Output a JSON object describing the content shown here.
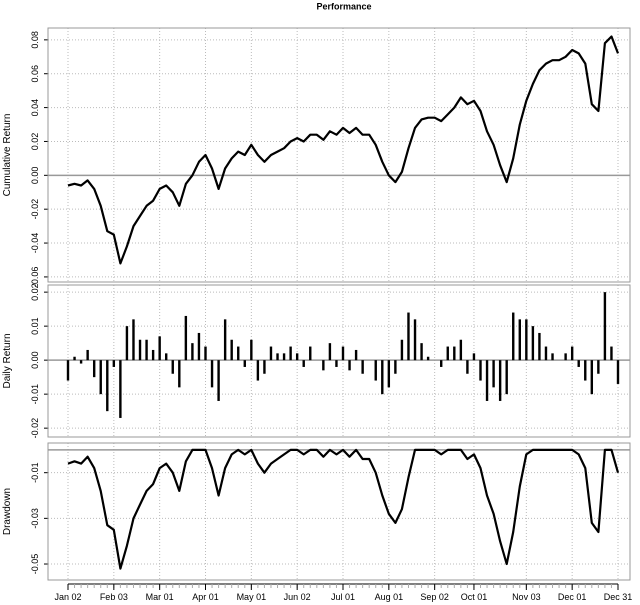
{
  "chart_data": [
    {
      "type": "line",
      "title": "Performance",
      "ylabel": "Cumulative Return",
      "color": "#000000",
      "grid": true,
      "ylim": [
        -0.063,
        0.087
      ],
      "yticks": [
        -0.06,
        -0.04,
        -0.02,
        {
          "value": 0,
          "label": "0.00"
        },
        0.02,
        0.04,
        0.06,
        0.08
      ],
      "values": [
        -0.006,
        -0.005,
        -0.006,
        -0.003,
        -0.008,
        -0.018,
        -0.033,
        -0.035,
        -0.052,
        -0.042,
        -0.03,
        -0.024,
        -0.018,
        -0.015,
        -0.008,
        -0.006,
        -0.01,
        -0.018,
        -0.005,
        0.0,
        0.008,
        0.012,
        0.004,
        -0.008,
        0.004,
        0.01,
        0.014,
        0.012,
        0.018,
        0.012,
        0.008,
        0.012,
        0.014,
        0.016,
        0.02,
        0.022,
        0.02,
        0.024,
        0.024,
        0.021,
        0.026,
        0.024,
        0.028,
        0.025,
        0.028,
        0.024,
        0.024,
        0.018,
        0.008,
        0.0,
        -0.004,
        0.002,
        0.016,
        0.028,
        0.033,
        0.034,
        0.034,
        0.032,
        0.036,
        0.04,
        0.046,
        0.042,
        0.044,
        0.038,
        0.026,
        0.018,
        0.006,
        -0.004,
        0.01,
        0.03,
        0.044,
        0.054,
        0.062,
        0.066,
        0.068,
        0.068,
        0.07,
        0.074,
        0.072,
        0.066,
        0.042,
        0.038,
        0.078,
        0.082,
        0.072
      ]
    },
    {
      "type": "bar",
      "ylabel": "Daily Return",
      "color": "#000000",
      "grid": true,
      "ylim": [
        -0.0226,
        0.0221
      ],
      "yticks": [
        -0.02,
        -0.01,
        {
          "value": 0,
          "label": "0.00"
        },
        0.01,
        0.02
      ],
      "values": [
        -0.006,
        0.001,
        -0.001,
        0.003,
        -0.005,
        -0.01,
        -0.015,
        -0.002,
        -0.017,
        0.01,
        0.012,
        0.006,
        0.006,
        0.003,
        0.007,
        0.002,
        -0.004,
        -0.008,
        0.013,
        0.005,
        0.008,
        0.004,
        -0.008,
        -0.012,
        0.012,
        0.006,
        0.004,
        -0.002,
        0.006,
        -0.006,
        -0.004,
        0.004,
        0.002,
        0.002,
        0.004,
        0.002,
        -0.002,
        0.004,
        0,
        -0.003,
        0.005,
        -0.002,
        0.004,
        -0.003,
        0.003,
        -0.004,
        0,
        -0.006,
        -0.01,
        -0.008,
        -0.004,
        0.006,
        0.014,
        0.012,
        0.005,
        0.001,
        0,
        -0.002,
        0.004,
        0.004,
        0.006,
        -0.004,
        0.002,
        -0.006,
        -0.012,
        -0.008,
        -0.012,
        -0.01,
        0.014,
        0.012,
        0.012,
        0.01,
        0.008,
        0.004,
        0.002,
        0,
        0.002,
        0.004,
        -0.002,
        -0.006,
        -0.01,
        -0.004,
        0.02,
        0.004,
        -0.007
      ]
    },
    {
      "type": "line",
      "ylabel": "Drawdown",
      "color": "#000000",
      "grid": true,
      "ylim": [
        -0.057,
        0.003
      ],
      "yticks": [
        -0.05,
        -0.03,
        -0.01
      ],
      "categories": [
        "Jan 02",
        null,
        null,
        null,
        null,
        null,
        null,
        "Feb 03",
        null,
        null,
        null,
        null,
        null,
        null,
        "Mar 01",
        null,
        null,
        null,
        null,
        null,
        null,
        "Apr 01",
        null,
        null,
        null,
        null,
        null,
        null,
        "May 01",
        null,
        null,
        null,
        null,
        null,
        null,
        "Jun 02",
        null,
        null,
        null,
        null,
        null,
        null,
        "Jul 01",
        null,
        null,
        null,
        null,
        null,
        null,
        "Aug 01",
        null,
        null,
        null,
        null,
        null,
        null,
        "Sep 02",
        null,
        null,
        null,
        null,
        null,
        "Oct 01",
        null,
        null,
        null,
        null,
        null,
        null,
        null,
        "Nov 03",
        null,
        null,
        null,
        null,
        null,
        null,
        "Dec 01",
        null,
        null,
        null,
        null,
        null,
        null,
        "Dec 31"
      ],
      "values": [
        -0.006,
        -0.005,
        -0.006,
        -0.003,
        -0.008,
        -0.018,
        -0.033,
        -0.035,
        -0.052,
        -0.042,
        -0.03,
        -0.024,
        -0.018,
        -0.015,
        -0.008,
        -0.006,
        -0.01,
        -0.018,
        -0.005,
        0,
        0,
        0,
        -0.008,
        -0.02,
        -0.008,
        -0.002,
        0,
        -0.002,
        0,
        -0.006,
        -0.01,
        -0.006,
        -0.004,
        -0.002,
        0,
        0,
        -0.002,
        0,
        0,
        -0.003,
        0,
        -0.002,
        0,
        -0.003,
        0,
        -0.004,
        -0.004,
        -0.01,
        -0.02,
        -0.028,
        -0.032,
        -0.026,
        -0.012,
        0,
        0,
        0,
        0,
        -0.002,
        0,
        0,
        0,
        -0.004,
        -0.002,
        -0.008,
        -0.02,
        -0.028,
        -0.04,
        -0.05,
        -0.036,
        -0.016,
        -0.002,
        0,
        0,
        0,
        0,
        0,
        0,
        0,
        -0.002,
        -0.008,
        -0.032,
        -0.036,
        0,
        0,
        -0.01
      ]
    }
  ]
}
